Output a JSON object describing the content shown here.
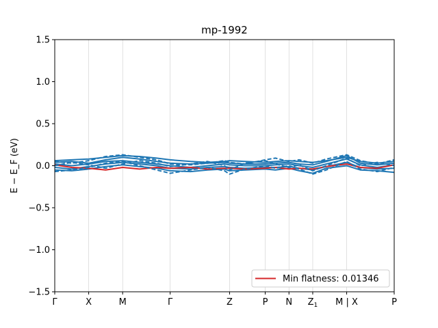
{
  "chart_data": {
    "type": "line",
    "title": "mp-1992",
    "ylabel": "E − E_F (eV)",
    "ylim": [
      -1.5,
      1.5
    ],
    "yticks": [
      -1.5,
      -1.0,
      -0.5,
      0.0,
      0.5,
      1.0,
      1.5
    ],
    "ytick_labels": [
      "−1.5",
      "−1.0",
      "−0.5",
      "0.0",
      "0.5",
      "1.0",
      "1.5"
    ],
    "x_range": [
      0,
      10
    ],
    "kpoints": [
      {
        "label": "Γ",
        "x": 0
      },
      {
        "label": "X",
        "x": 1
      },
      {
        "label": "M",
        "x": 2
      },
      {
        "label": "Γ",
        "x": 3.4
      },
      {
        "label": "Z",
        "x": 5.15
      },
      {
        "label": "P",
        "x": 6.2
      },
      {
        "label": "N",
        "x": 6.9
      },
      {
        "label": "Z1",
        "x": 7.6
      },
      {
        "label": "M | X",
        "x": 8.6
      },
      {
        "label": "P",
        "x": 10
      }
    ],
    "grid": false,
    "legend": {
      "placement": "bottom-right",
      "entries": [
        {
          "label": "Min flatness: 0.01346",
          "color": "#d62728"
        }
      ]
    },
    "colors": {
      "bands": "#1f77b4",
      "highlight": "#d62728"
    },
    "series": [
      {
        "style": "solid",
        "color": "#1f77b4",
        "x": [
          0,
          0.5,
          1,
          1.5,
          2,
          2.5,
          3,
          3.4,
          4,
          4.5,
          5,
          5.15,
          5.6,
          6.2,
          6.5,
          6.9,
          7.2,
          7.6,
          8,
          8.6,
          9,
          9.5,
          10
        ],
        "y": [
          0.06,
          0.07,
          0.08,
          0.1,
          0.12,
          0.11,
          0.09,
          0.07,
          0.05,
          0.04,
          0.05,
          0.06,
          0.05,
          0.04,
          0.05,
          0.06,
          0.05,
          0.04,
          0.06,
          0.1,
          0.05,
          0.03,
          0.05
        ]
      },
      {
        "style": "solid",
        "color": "#1f77b4",
        "x": [
          0,
          0.5,
          1,
          1.5,
          2,
          2.5,
          3,
          3.4,
          4,
          4.5,
          5,
          5.15,
          5.6,
          6.2,
          6.5,
          6.9,
          7.2,
          7.6,
          8,
          8.6,
          9,
          9.5,
          10
        ],
        "y": [
          0.04,
          0.05,
          0.03,
          0.07,
          0.1,
          0.08,
          0.05,
          0.03,
          0.02,
          0.03,
          0.04,
          0.03,
          0.02,
          0.02,
          0.03,
          0.04,
          0.02,
          0.01,
          0.05,
          0.12,
          0.03,
          0.01,
          0.03
        ]
      },
      {
        "style": "solid",
        "color": "#1f77b4",
        "x": [
          0,
          0.5,
          1,
          1.5,
          2,
          2.5,
          3,
          3.4,
          4,
          4.5,
          5,
          5.15,
          5.6,
          6.2,
          6.5,
          6.9,
          7.2,
          7.6,
          8,
          8.6,
          9,
          9.5,
          10
        ],
        "y": [
          0.02,
          0.0,
          0.02,
          0.05,
          0.06,
          0.04,
          0.02,
          0.0,
          -0.02,
          0.0,
          0.02,
          0.01,
          0.0,
          0.0,
          0.01,
          0.02,
          0.0,
          -0.02,
          0.02,
          0.08,
          0.01,
          -0.02,
          0.01
        ]
      },
      {
        "style": "solid",
        "color": "#1f77b4",
        "x": [
          0,
          0.5,
          1,
          1.5,
          2,
          2.5,
          3,
          3.4,
          4,
          4.5,
          5,
          5.15,
          5.6,
          6.2,
          6.5,
          6.9,
          7.2,
          7.6,
          8,
          8.6,
          9,
          9.5,
          10
        ],
        "y": [
          -0.02,
          -0.04,
          -0.01,
          0.02,
          0.04,
          0.02,
          0.0,
          -0.03,
          -0.04,
          -0.02,
          -0.01,
          -0.02,
          -0.03,
          -0.02,
          -0.02,
          -0.01,
          -0.03,
          -0.05,
          -0.01,
          0.04,
          -0.02,
          -0.04,
          -0.03
        ]
      },
      {
        "style": "solid",
        "color": "#1f77b4",
        "x": [
          0,
          0.5,
          1,
          1.5,
          2,
          2.5,
          3,
          3.4,
          4,
          4.5,
          5,
          5.15,
          5.6,
          6.2,
          6.5,
          6.9,
          7.2,
          7.6,
          8,
          8.6,
          9,
          9.5,
          10
        ],
        "y": [
          -0.05,
          -0.06,
          -0.04,
          -0.01,
          0.01,
          -0.01,
          -0.03,
          -0.06,
          -0.07,
          -0.05,
          -0.04,
          -0.06,
          -0.05,
          -0.04,
          -0.05,
          -0.03,
          -0.06,
          -0.09,
          -0.03,
          0.0,
          -0.05,
          -0.06,
          -0.08
        ]
      },
      {
        "style": "solid",
        "color": "#d62728",
        "x": [
          0,
          0.5,
          1,
          1.5,
          2,
          2.5,
          3,
          3.4,
          4,
          4.5,
          5,
          5.15,
          5.6,
          6.2,
          6.5,
          6.9,
          7.2,
          7.6,
          8,
          8.6,
          9,
          9.5,
          10
        ],
        "y": [
          0.01,
          -0.02,
          -0.03,
          -0.05,
          -0.02,
          -0.04,
          -0.02,
          -0.03,
          -0.02,
          -0.04,
          -0.03,
          -0.03,
          -0.04,
          -0.03,
          -0.02,
          -0.04,
          -0.03,
          -0.04,
          -0.01,
          0.02,
          -0.02,
          -0.03,
          0.01
        ]
      },
      {
        "style": "dashed",
        "color": "#1f77b4",
        "x": [
          0,
          0.5,
          1,
          1.5,
          2,
          2.5,
          3,
          3.4,
          4,
          4.5,
          5,
          5.15,
          5.6,
          6.2,
          6.5,
          6.9,
          7.2,
          7.6,
          8,
          8.6,
          9,
          9.5,
          10
        ],
        "y": [
          0.05,
          0.03,
          0.06,
          0.11,
          0.13,
          0.1,
          0.07,
          0.02,
          0.01,
          0.03,
          0.06,
          0.04,
          0.02,
          0.07,
          0.09,
          0.05,
          0.07,
          0.03,
          0.08,
          0.13,
          0.06,
          0.02,
          0.07
        ]
      },
      {
        "style": "dashed",
        "color": "#1f77b4",
        "x": [
          0,
          0.5,
          1,
          1.5,
          2,
          2.5,
          3,
          3.4,
          4,
          4.5,
          5,
          5.15,
          5.6,
          6.2,
          6.5,
          6.9,
          7.2,
          7.6,
          8,
          8.6,
          9,
          9.5,
          10
        ],
        "y": [
          -0.07,
          -0.05,
          -0.02,
          0.03,
          0.05,
          0.0,
          -0.05,
          -0.09,
          -0.05,
          -0.02,
          -0.06,
          -0.1,
          -0.04,
          0.0,
          -0.03,
          0.0,
          -0.04,
          -0.1,
          -0.05,
          0.05,
          -0.04,
          -0.07,
          -0.02
        ]
      },
      {
        "style": "dashed",
        "color": "#1f77b4",
        "x": [
          0,
          0.5,
          1,
          1.5,
          2,
          2.5,
          3,
          3.4,
          4,
          4.5,
          5,
          5.15,
          5.6,
          6.2,
          6.5,
          6.9,
          7.2,
          7.6,
          8,
          8.6,
          9,
          9.5,
          10
        ],
        "y": [
          0.0,
          0.04,
          0.01,
          -0.03,
          0.02,
          0.06,
          0.03,
          -0.01,
          0.02,
          0.05,
          0.0,
          -0.05,
          0.03,
          0.06,
          0.02,
          -0.02,
          0.01,
          -0.06,
          0.0,
          0.09,
          0.0,
          0.04,
          0.0
        ]
      }
    ]
  }
}
